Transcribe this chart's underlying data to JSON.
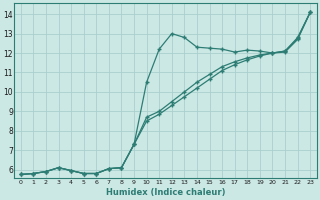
{
  "xlabel": "Humidex (Indice chaleur)",
  "bg_color": "#cce8e5",
  "grid_color": "#aacfcc",
  "line_color": "#2d7d74",
  "xlim": [
    -0.5,
    23.5
  ],
  "ylim": [
    5.55,
    14.55
  ],
  "xticks": [
    0,
    1,
    2,
    3,
    4,
    5,
    6,
    7,
    8,
    9,
    10,
    11,
    12,
    13,
    14,
    15,
    16,
    17,
    18,
    19,
    20,
    21,
    22,
    23
  ],
  "yticks": [
    6,
    7,
    8,
    9,
    10,
    11,
    12,
    13,
    14
  ],
  "line1_x": [
    0,
    1,
    2,
    3,
    4,
    5,
    6,
    7,
    8,
    9,
    10,
    11,
    12,
    13,
    14,
    15,
    16,
    17,
    18,
    19,
    20,
    21,
    22,
    23
  ],
  "line1_y": [
    5.75,
    5.8,
    5.9,
    6.1,
    5.95,
    5.8,
    5.8,
    6.05,
    6.1,
    7.3,
    10.5,
    12.2,
    13.0,
    12.8,
    12.3,
    12.25,
    12.2,
    12.05,
    12.15,
    12.1,
    12.0,
    12.1,
    12.8,
    14.1
  ],
  "line2_x": [
    0,
    1,
    2,
    3,
    4,
    5,
    6,
    7,
    8,
    9,
    10,
    11,
    12,
    13,
    14,
    15,
    16,
    17,
    18,
    19,
    20,
    21,
    22,
    23
  ],
  "line2_y": [
    5.75,
    5.8,
    5.9,
    6.1,
    5.95,
    5.8,
    5.8,
    6.05,
    6.1,
    7.3,
    8.7,
    9.0,
    9.5,
    10.0,
    10.5,
    10.9,
    11.3,
    11.55,
    11.75,
    11.9,
    12.0,
    12.1,
    12.75,
    14.1
  ],
  "line3_x": [
    0,
    1,
    2,
    3,
    4,
    5,
    6,
    7,
    8,
    9,
    10,
    11,
    12,
    13,
    14,
    15,
    16,
    17,
    18,
    19,
    20,
    21,
    22,
    23
  ],
  "line3_y": [
    5.75,
    5.8,
    5.9,
    6.1,
    5.95,
    5.8,
    5.8,
    6.05,
    6.1,
    7.3,
    8.5,
    8.85,
    9.3,
    9.75,
    10.2,
    10.65,
    11.1,
    11.4,
    11.65,
    11.85,
    12.0,
    12.05,
    12.7,
    14.1
  ]
}
